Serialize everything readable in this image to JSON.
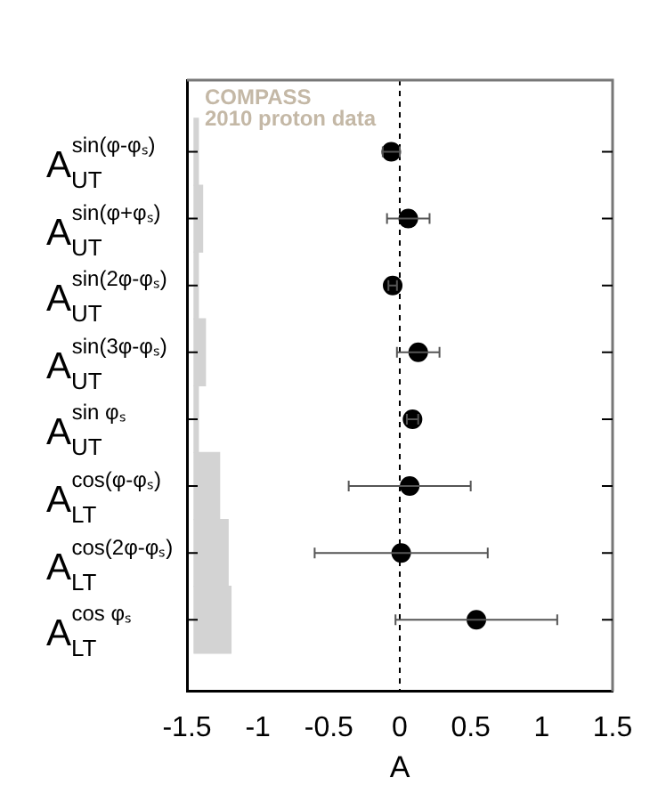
{
  "chart_data": {
    "type": "scatter",
    "orientation": "horizontal",
    "xlabel": "A",
    "categories": [
      "A$_{UT}$$^{sin(φ-φₛ)}$",
      "A$_{UT}$$^{sin(φ+φₛ)}$",
      "A$_{UT}$$^{sin(2φ-φₛ)}$",
      "A$_{UT}$$^{sin(3φ-φₛ)}$",
      "A$_{UT}$$^{sin φₛ}$",
      "A$_{LT}$$^{cos(φ-φₛ)}$",
      "A$_{LT}$$^{cos(2φ-φₛ)}$",
      "A$_{LT}$$^{cos φₛ}$"
    ],
    "series": [
      {
        "type": "bar",
        "color": "#d3d3d3",
        "base": [
          -1.45,
          -1.45,
          -1.45,
          -1.45,
          -1.45,
          -1.45,
          -1.45,
          -1.45
        ],
        "values": [
          0.03,
          0.06,
          0.03,
          0.08,
          0.03,
          0.18,
          0.24,
          0.26
        ]
      },
      {
        "color": "#000000",
        "values": [
          -0.06,
          0.06,
          -0.05,
          0.13,
          0.09,
          0.07,
          0.01,
          0.54
        ],
        "errors": [
          0.06,
          0.15,
          0.03,
          0.15,
          0.04,
          0.43,
          0.61,
          0.57
        ]
      }
    ],
    "xlim": [
      -1.5,
      1.5
    ],
    "xticks": [
      -1.5,
      -1,
      -0.5,
      0,
      0.5,
      1,
      1.5
    ],
    "ref_lines": [
      {
        "axis": "x",
        "value": 0,
        "line_style": "dashed",
        "color": "#000000"
      }
    ],
    "annotations": [
      "COMPASS\n2010 proton data"
    ],
    "marker": "circle",
    "grid": false,
    "legend": false
  }
}
